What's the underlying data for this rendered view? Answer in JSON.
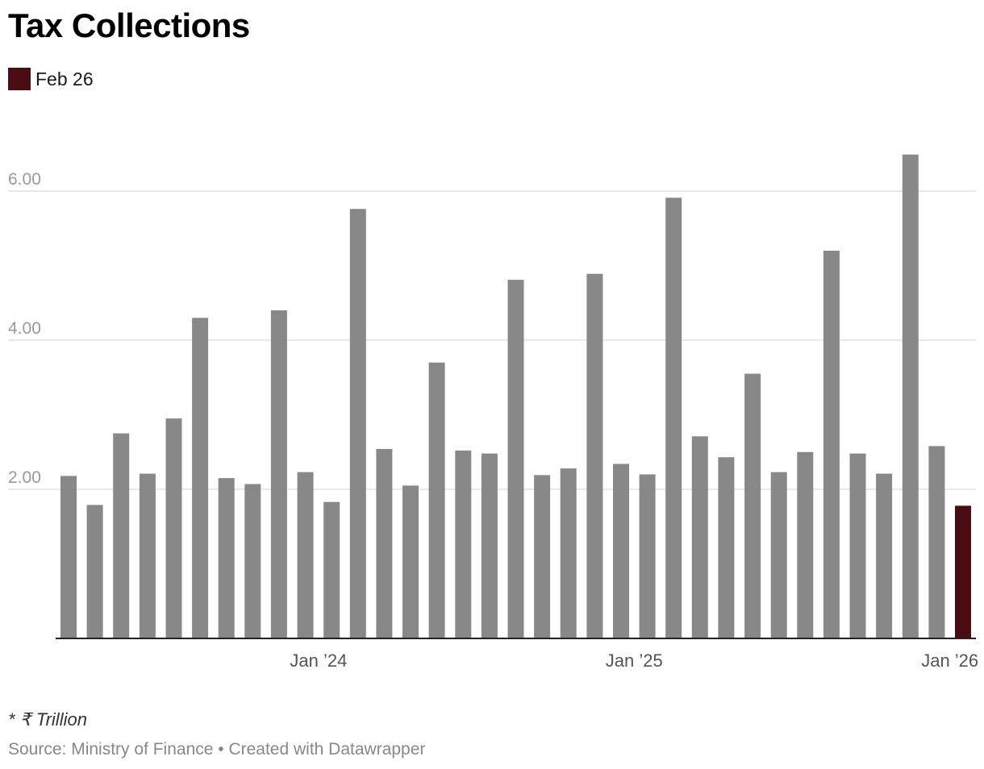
{
  "title": "Tax Collections",
  "legend": {
    "label": "Feb 26",
    "color": "#4a0d11"
  },
  "note": "* ₹ Trillion",
  "source": "Source: Ministry of Finance • Created with Datawrapper",
  "chart_data": {
    "type": "bar",
    "title": "Tax Collections",
    "xlabel": "",
    "ylabel": "",
    "ylim": [
      0,
      7
    ],
    "yticks": [
      2,
      4,
      6
    ],
    "ytick_labels": [
      "2.00",
      "4.00",
      "6.00"
    ],
    "grid": true,
    "legend_position": "top-left",
    "bar_color": "#888888",
    "highlight_color": "#4a0d11",
    "highlight_index": 34,
    "xtick_labels": [
      {
        "index": 9,
        "label": "Jan ’24"
      },
      {
        "index": 21,
        "label": "Jan ’25"
      },
      {
        "index": 33,
        "label": "Jan ’26"
      }
    ],
    "values": [
      2.18,
      1.79,
      2.75,
      2.21,
      2.95,
      4.3,
      2.15,
      2.07,
      4.4,
      2.23,
      1.83,
      5.76,
      2.54,
      2.05,
      3.7,
      2.52,
      2.48,
      4.81,
      2.19,
      2.28,
      4.89,
      2.34,
      2.2,
      5.91,
      2.71,
      2.43,
      3.55,
      2.23,
      2.5,
      5.2,
      2.48,
      2.21,
      6.49,
      2.58,
      1.78
    ]
  }
}
